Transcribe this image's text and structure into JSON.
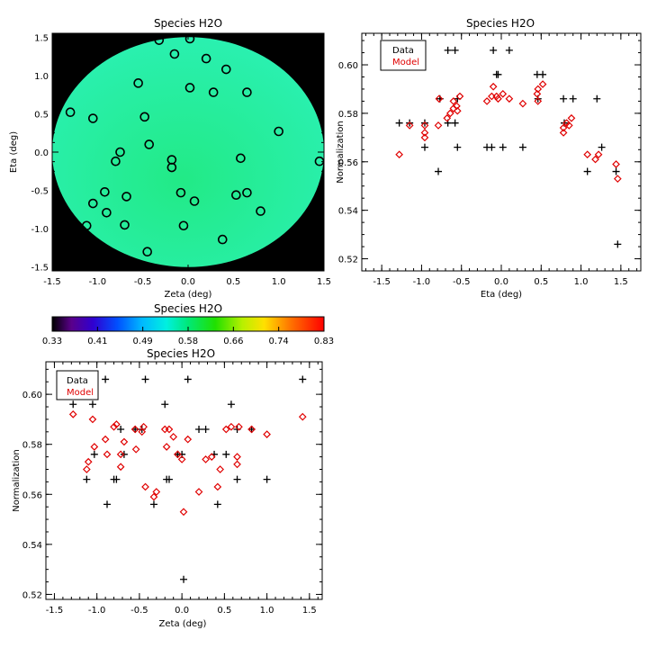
{
  "chart_data": [
    {
      "type": "heatmap",
      "title": "Species H2O",
      "xlabel": "Zeta (deg)",
      "ylabel": "Eta (deg)",
      "xlim": [
        -1.5,
        1.5
      ],
      "ylim": [
        -1.55,
        1.55
      ],
      "xticks": [
        "-1.5",
        "-1.0",
        "-0.5",
        "0.0",
        "0.5",
        "1.0",
        "1.5"
      ],
      "yticks": [
        "-1.5",
        "-1.0",
        "-0.5",
        "0.0",
        "0.5",
        "1.0",
        "1.5"
      ],
      "field_color": "#22ea86",
      "field_color_edge": "#2af0b0",
      "background_color": "#000000",
      "circle_radius_deg": 1.5,
      "stations": [
        [
          -0.32,
          1.46
        ],
        [
          0.02,
          1.48
        ],
        [
          -0.15,
          1.28
        ],
        [
          0.2,
          1.22
        ],
        [
          0.42,
          1.08
        ],
        [
          -0.55,
          0.9
        ],
        [
          0.02,
          0.84
        ],
        [
          0.28,
          0.78
        ],
        [
          0.65,
          0.78
        ],
        [
          -1.3,
          0.52
        ],
        [
          -1.05,
          0.44
        ],
        [
          -0.48,
          0.46
        ],
        [
          1.0,
          0.27
        ],
        [
          -0.43,
          0.1
        ],
        [
          -0.75,
          0.0
        ],
        [
          -0.8,
          -0.12
        ],
        [
          -0.18,
          -0.1
        ],
        [
          -0.18,
          -0.2
        ],
        [
          1.45,
          -0.12
        ],
        [
          0.58,
          -0.08
        ],
        [
          -0.92,
          -0.52
        ],
        [
          -0.68,
          -0.58
        ],
        [
          -0.08,
          -0.53
        ],
        [
          0.53,
          -0.56
        ],
        [
          0.65,
          -0.53
        ],
        [
          -1.05,
          -0.67
        ],
        [
          0.07,
          -0.64
        ],
        [
          -0.9,
          -0.79
        ],
        [
          0.8,
          -0.77
        ],
        [
          -0.7,
          -0.95
        ],
        [
          -1.12,
          -0.96
        ],
        [
          -0.05,
          -0.96
        ],
        [
          0.38,
          -1.14
        ],
        [
          -0.45,
          -1.3
        ]
      ]
    },
    {
      "type": "colorbar",
      "title": "Species H2O",
      "range": [
        0.33,
        0.83
      ],
      "tick_labels": [
        "0.33",
        "0.41",
        "0.49",
        "0.58",
        "0.66",
        "0.74",
        "0.83"
      ]
    },
    {
      "type": "scatter",
      "title": "Species H2O",
      "xlabel": "Eta (deg)",
      "ylabel": "Normalization",
      "xlim": [
        -1.75,
        1.75
      ],
      "ylim": [
        0.515,
        0.613
      ],
      "xticks": [
        "-1.5",
        "-1.0",
        "-0.5",
        "0.0",
        "0.5",
        "1.0",
        "1.5"
      ],
      "yticks": [
        "0.52",
        "0.54",
        "0.56",
        "0.58",
        "0.60"
      ],
      "legend": [
        "Data",
        "Model"
      ],
      "legend_position": "top-left",
      "series": [
        {
          "name": "Data",
          "marker": "plus",
          "color": "#000000",
          "points": [
            [
              -1.28,
              0.576
            ],
            [
              -1.15,
              0.576
            ],
            [
              -0.96,
              0.576
            ],
            [
              -0.96,
              0.566
            ],
            [
              -0.79,
              0.556
            ],
            [
              -0.77,
              0.586
            ],
            [
              -0.67,
              0.606
            ],
            [
              -0.67,
              0.576
            ],
            [
              -0.58,
              0.606
            ],
            [
              -0.58,
              0.576
            ],
            [
              -0.55,
              0.586
            ],
            [
              -0.55,
              0.566
            ],
            [
              -0.18,
              0.566
            ],
            [
              -0.12,
              0.566
            ],
            [
              -0.1,
              0.606
            ],
            [
              -0.06,
              0.596
            ],
            [
              -0.04,
              0.596
            ],
            [
              0.02,
              0.566
            ],
            [
              0.1,
              0.606
            ],
            [
              0.27,
              0.566
            ],
            [
              0.45,
              0.596
            ],
            [
              0.46,
              0.586
            ],
            [
              0.52,
              0.596
            ],
            [
              0.78,
              0.586
            ],
            [
              0.79,
              0.576
            ],
            [
              0.9,
              0.586
            ],
            [
              1.08,
              0.556
            ],
            [
              1.2,
              0.586
            ],
            [
              1.26,
              0.566
            ],
            [
              1.44,
              0.556
            ],
            [
              1.46,
              0.526
            ]
          ]
        },
        {
          "name": "Model",
          "marker": "diamond",
          "color": "#e00000",
          "points": [
            [
              -1.28,
              0.563
            ],
            [
              -1.15,
              0.575
            ],
            [
              -0.96,
              0.575
            ],
            [
              -0.96,
              0.572
            ],
            [
              -0.96,
              0.57
            ],
            [
              -0.78,
              0.586
            ],
            [
              -0.79,
              0.575
            ],
            [
              -0.68,
              0.578
            ],
            [
              -0.64,
              0.58
            ],
            [
              -0.6,
              0.582
            ],
            [
              -0.6,
              0.585
            ],
            [
              -0.56,
              0.583
            ],
            [
              -0.55,
              0.581
            ],
            [
              -0.52,
              0.587
            ],
            [
              -0.18,
              0.585
            ],
            [
              -0.12,
              0.587
            ],
            [
              -0.1,
              0.591
            ],
            [
              -0.06,
              0.587
            ],
            [
              -0.04,
              0.586
            ],
            [
              0.02,
              0.588
            ],
            [
              0.1,
              0.586
            ],
            [
              0.27,
              0.584
            ],
            [
              0.45,
              0.588
            ],
            [
              0.46,
              0.585
            ],
            [
              0.46,
              0.59
            ],
            [
              0.52,
              0.592
            ],
            [
              0.78,
              0.574
            ],
            [
              0.78,
              0.572
            ],
            [
              0.82,
              0.576
            ],
            [
              0.85,
              0.575
            ],
            [
              0.88,
              0.578
            ],
            [
              1.08,
              0.563
            ],
            [
              1.18,
              0.561
            ],
            [
              1.22,
              0.563
            ],
            [
              1.44,
              0.559
            ],
            [
              1.46,
              0.553
            ]
          ]
        }
      ]
    },
    {
      "type": "scatter",
      "title": "Species H2O",
      "xlabel": "Zeta (deg)",
      "ylabel": "Normalization",
      "xlim": [
        -1.6,
        1.65
      ],
      "ylim": [
        0.518,
        0.613
      ],
      "xticks": [
        "-1.5",
        "-1.0",
        "-0.5",
        "0.0",
        "0.5",
        "1.0",
        "1.5"
      ],
      "yticks": [
        "0.52",
        "0.54",
        "0.56",
        "0.58",
        "0.60"
      ],
      "legend": [
        "Data",
        "Model"
      ],
      "legend_position": "top-left",
      "series": [
        {
          "name": "Data",
          "marker": "plus",
          "color": "#000000",
          "points": [
            [
              -1.28,
              0.596
            ],
            [
              -1.12,
              0.566
            ],
            [
              -1.05,
              0.596
            ],
            [
              -1.03,
              0.576
            ],
            [
              -0.9,
              0.606
            ],
            [
              -0.88,
              0.556
            ],
            [
              -0.8,
              0.566
            ],
            [
              -0.77,
              0.566
            ],
            [
              -0.72,
              0.586
            ],
            [
              -0.68,
              0.576
            ],
            [
              -0.55,
              0.586
            ],
            [
              -0.47,
              0.586
            ],
            [
              -0.43,
              0.606
            ],
            [
              -0.33,
              0.556
            ],
            [
              -0.2,
              0.596
            ],
            [
              -0.18,
              0.566
            ],
            [
              -0.15,
              0.566
            ],
            [
              -0.05,
              0.576
            ],
            [
              0.0,
              0.576
            ],
            [
              0.02,
              0.526
            ],
            [
              0.07,
              0.606
            ],
            [
              0.2,
              0.586
            ],
            [
              0.28,
              0.586
            ],
            [
              0.38,
              0.576
            ],
            [
              0.42,
              0.556
            ],
            [
              0.52,
              0.576
            ],
            [
              0.58,
              0.596
            ],
            [
              0.65,
              0.586
            ],
            [
              0.65,
              0.566
            ],
            [
              0.82,
              0.586
            ],
            [
              1.0,
              0.566
            ],
            [
              1.42,
              0.606
            ]
          ]
        },
        {
          "name": "Model",
          "marker": "diamond",
          "color": "#e00000",
          "points": [
            [
              -1.28,
              0.592
            ],
            [
              -1.12,
              0.57
            ],
            [
              -1.1,
              0.573
            ],
            [
              -1.05,
              0.59
            ],
            [
              -1.03,
              0.579
            ],
            [
              -0.9,
              0.582
            ],
            [
              -0.88,
              0.576
            ],
            [
              -0.8,
              0.587
            ],
            [
              -0.77,
              0.588
            ],
            [
              -0.72,
              0.576
            ],
            [
              -0.72,
              0.571
            ],
            [
              -0.68,
              0.581
            ],
            [
              -0.55,
              0.586
            ],
            [
              -0.54,
              0.578
            ],
            [
              -0.47,
              0.585
            ],
            [
              -0.45,
              0.587
            ],
            [
              -0.43,
              0.563
            ],
            [
              -0.33,
              0.559
            ],
            [
              -0.3,
              0.561
            ],
            [
              -0.2,
              0.586
            ],
            [
              -0.18,
              0.579
            ],
            [
              -0.15,
              0.586
            ],
            [
              -0.1,
              0.583
            ],
            [
              -0.05,
              0.576
            ],
            [
              0.0,
              0.574
            ],
            [
              0.02,
              0.553
            ],
            [
              0.07,
              0.582
            ],
            [
              0.2,
              0.561
            ],
            [
              0.28,
              0.574
            ],
            [
              0.35,
              0.575
            ],
            [
              0.42,
              0.563
            ],
            [
              0.45,
              0.57
            ],
            [
              0.52,
              0.586
            ],
            [
              0.58,
              0.587
            ],
            [
              0.65,
              0.575
            ],
            [
              0.65,
              0.572
            ],
            [
              0.67,
              0.587
            ],
            [
              0.82,
              0.586
            ],
            [
              1.0,
              0.584
            ],
            [
              1.42,
              0.591
            ]
          ]
        }
      ]
    }
  ]
}
